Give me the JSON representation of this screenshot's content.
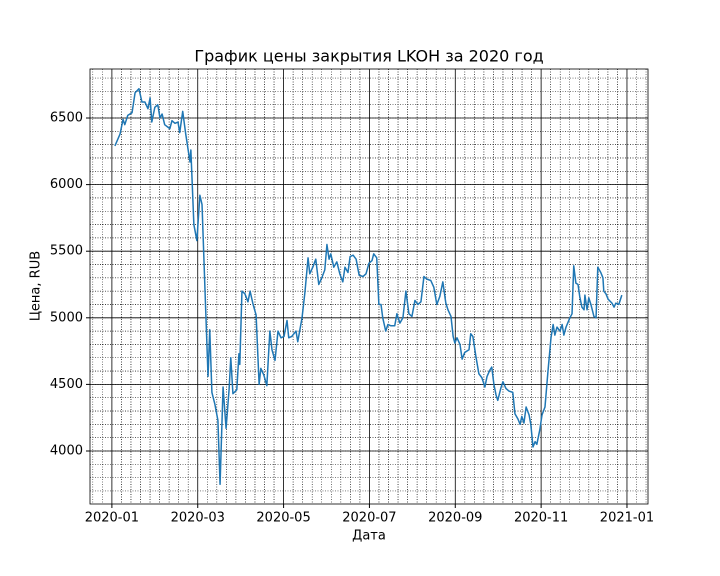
{
  "chart_data": {
    "type": "line",
    "title": "График цены закрытия LKOH за 2020 год",
    "x_label": "Дата",
    "y_label": "Цена, RUB",
    "grid": true,
    "minor_grid": true,
    "xlim": [
      -0.51,
      12.49
    ],
    "xticks": [
      {
        "value": 0,
        "label": "2020-01"
      },
      {
        "value": 2,
        "label": "2020-03"
      },
      {
        "value": 4,
        "label": "2020-05"
      },
      {
        "value": 6,
        "label": "2020-07"
      },
      {
        "value": 8,
        "label": "2020-09"
      },
      {
        "value": 10,
        "label": "2020-11"
      },
      {
        "value": 12,
        "label": "2021-01"
      }
    ],
    "ylim": [
      3602,
      6868
    ],
    "yticks": [
      4000,
      4500,
      5000,
      5500,
      6000,
      6500
    ],
    "series": [
      {
        "color": "#1f77b4",
        "x": [
          0.07,
          0.19,
          0.26,
          0.3,
          0.37,
          0.47,
          0.54,
          0.63,
          0.7,
          0.77,
          0.84,
          0.89,
          0.93,
          1.0,
          1.07,
          1.12,
          1.17,
          1.23,
          1.35,
          1.4,
          1.47,
          1.54,
          1.58,
          1.65,
          1.72,
          1.82,
          1.84,
          1.91,
          1.98,
          2.05,
          2.1,
          2.17,
          2.24,
          2.28,
          2.33,
          2.4,
          2.47,
          2.52,
          2.59,
          2.66,
          2.73,
          2.77,
          2.82,
          2.91,
          2.96,
          2.98,
          3.03,
          3.1,
          3.17,
          3.22,
          3.29,
          3.36,
          3.43,
          3.47,
          3.54,
          3.61,
          3.68,
          3.73,
          3.8,
          3.87,
          3.94,
          4.01,
          4.08,
          4.12,
          4.19,
          4.29,
          4.33,
          4.43,
          4.5,
          4.57,
          4.61,
          4.68,
          4.75,
          4.82,
          4.89,
          4.96,
          5.01,
          5.06,
          5.1,
          5.17,
          5.24,
          5.31,
          5.38,
          5.43,
          5.5,
          5.55,
          5.62,
          5.69,
          5.76,
          5.85,
          5.92,
          5.99,
          6.06,
          6.1,
          6.17,
          6.22,
          6.27,
          6.31,
          6.38,
          6.43,
          6.5,
          6.59,
          6.64,
          6.71,
          6.78,
          6.85,
          6.92,
          6.99,
          7.06,
          7.13,
          7.2,
          7.27,
          7.34,
          7.43,
          7.5,
          7.57,
          7.64,
          7.71,
          7.78,
          7.83,
          7.9,
          7.95,
          7.99,
          8.04,
          8.11,
          8.16,
          8.22,
          8.32,
          8.36,
          8.41,
          8.48,
          8.55,
          8.62,
          8.69,
          8.74,
          8.81,
          8.85,
          8.9,
          8.95,
          8.99,
          9.06,
          9.11,
          9.18,
          9.25,
          9.34,
          9.39,
          9.46,
          9.51,
          9.55,
          9.6,
          9.65,
          9.72,
          9.76,
          9.81,
          9.86,
          9.9,
          9.97,
          10.02,
          10.09,
          10.16,
          10.23,
          10.28,
          10.32,
          10.37,
          10.44,
          10.49,
          10.53,
          10.58,
          10.67,
          10.72,
          10.76,
          10.81,
          10.86,
          10.9,
          10.95,
          11.0,
          11.02,
          11.07,
          11.11,
          11.16,
          11.23,
          11.28,
          11.32,
          11.39,
          11.44,
          11.46,
          11.51,
          11.56,
          11.65,
          11.7,
          11.74,
          11.81,
          11.88
        ],
        "values": [
          6290,
          6380,
          6490,
          6450,
          6520,
          6540,
          6690,
          6720,
          6620,
          6620,
          6570,
          6650,
          6470,
          6580,
          6600,
          6500,
          6530,
          6450,
          6420,
          6480,
          6460,
          6470,
          6390,
          6550,
          6380,
          6170,
          6260,
          5700,
          5580,
          5920,
          5850,
          5200,
          4560,
          4910,
          4440,
          4350,
          4230,
          3750,
          4480,
          4170,
          4460,
          4700,
          4430,
          4460,
          4730,
          4650,
          5200,
          5180,
          5120,
          5200,
          5100,
          5020,
          4500,
          4620,
          4570,
          4490,
          4900,
          4760,
          4680,
          4900,
          4850,
          4860,
          4980,
          4850,
          4860,
          4900,
          4820,
          5000,
          5200,
          5450,
          5330,
          5380,
          5440,
          5250,
          5300,
          5360,
          5550,
          5440,
          5480,
          5380,
          5420,
          5330,
          5270,
          5380,
          5340,
          5460,
          5470,
          5440,
          5320,
          5310,
          5330,
          5410,
          5430,
          5480,
          5450,
          5100,
          5100,
          5000,
          4900,
          4950,
          4940,
          4940,
          5030,
          4960,
          5000,
          5200,
          5030,
          5010,
          5130,
          5100,
          5120,
          5310,
          5290,
          5280,
          5230,
          5100,
          5160,
          5270,
          5110,
          5060,
          5010,
          4860,
          4810,
          4850,
          4800,
          4690,
          4740,
          4760,
          4880,
          4860,
          4710,
          4580,
          4550,
          4480,
          4560,
          4610,
          4630,
          4500,
          4420,
          4380,
          4470,
          4520,
          4470,
          4450,
          4440,
          4280,
          4240,
          4200,
          4260,
          4210,
          4330,
          4270,
          4200,
          4030,
          4070,
          4050,
          4160,
          4270,
          4330,
          4600,
          4850,
          4950,
          4870,
          4930,
          4900,
          4950,
          4870,
          4930,
          5000,
          5030,
          5390,
          5260,
          5250,
          5160,
          5080,
          5060,
          5170,
          5060,
          5150,
          5100,
          5010,
          5000,
          5380,
          5340,
          5300,
          5200,
          5180,
          5140,
          5110,
          5080,
          5110,
          5100,
          5170
        ]
      }
    ]
  }
}
